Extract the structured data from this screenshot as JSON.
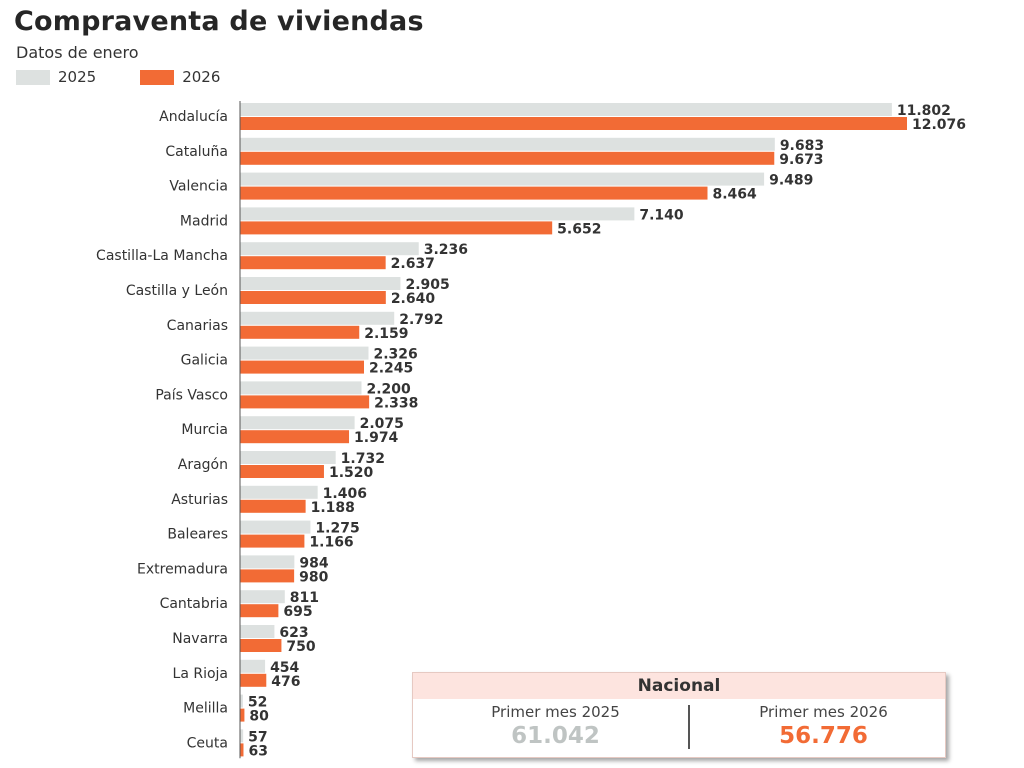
{
  "title": "Compraventa de viviendas",
  "subtitle": "Datos de enero",
  "legend": {
    "items": [
      {
        "label": "2025",
        "color": "#dde1e0"
      },
      {
        "label": "2026",
        "color": "#f26b35"
      }
    ]
  },
  "chart_data": {
    "type": "bar",
    "orientation": "horizontal",
    "title": "Compraventa de viviendas",
    "subtitle": "Datos de enero",
    "categories": [
      "Andalucía",
      "Cataluña",
      "Valencia",
      "Madrid",
      "Castilla-La Mancha",
      "Castilla y León",
      "Canarias",
      "Galicia",
      "País Vasco",
      "Murcia",
      "Aragón",
      "Asturias",
      "Baleares",
      "Extremadura",
      "Cantabria",
      "Navarra",
      "La Rioja",
      "Melilla",
      "Ceuta"
    ],
    "series": [
      {
        "name": "2025",
        "color": "#dde1e0",
        "values": [
          11802,
          9683,
          9489,
          7140,
          3236,
          2905,
          2792,
          2326,
          2200,
          2075,
          1732,
          1406,
          1275,
          984,
          811,
          623,
          454,
          52,
          57
        ],
        "labels": [
          "11.802",
          "9.683",
          "9.489",
          "7.140",
          "3.236",
          "2.905",
          "2.792",
          "2.326",
          "2.200",
          "2.075",
          "1.732",
          "1.406",
          "1.275",
          "984",
          "811",
          "623",
          "454",
          "52",
          "57"
        ]
      },
      {
        "name": "2026",
        "color": "#f26b35",
        "values": [
          12076,
          9673,
          8464,
          5652,
          2637,
          2640,
          2159,
          2245,
          2338,
          1974,
          1520,
          1188,
          1166,
          980,
          695,
          750,
          476,
          80,
          63
        ],
        "labels": [
          "12.076",
          "9.673",
          "8.464",
          "5.652",
          "2.637",
          "2.640",
          "2.159",
          "2.245",
          "2.338",
          "1.974",
          "1.520",
          "1.188",
          "1.166",
          "980",
          "695",
          "750",
          "476",
          "80",
          "63"
        ]
      }
    ],
    "xlim": [
      0,
      12076
    ],
    "grid": false,
    "legend_position": "top-left"
  },
  "national": {
    "title": "Nacional",
    "first": {
      "label": "Primer mes 2025",
      "value": "61.042",
      "color": "#bfc4c3"
    },
    "second": {
      "label": "Primer mes 2026",
      "value": "56.776",
      "color": "#f26b35"
    }
  }
}
